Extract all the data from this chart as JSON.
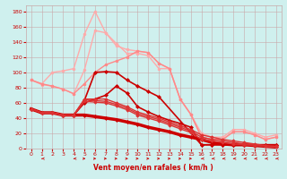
{
  "bg_color": "#cff0ee",
  "grid_color": "#c8a8a8",
  "xlabel": "Vent moyen/en rafales ( km/h )",
  "xlabel_color": "#cc0000",
  "tick_color": "#cc0000",
  "xlim": [
    -0.5,
    23.5
  ],
  "ylim": [
    0,
    188
  ],
  "yticks": [
    0,
    20,
    40,
    60,
    80,
    100,
    120,
    140,
    160,
    180
  ],
  "xticks": [
    0,
    1,
    2,
    3,
    4,
    5,
    6,
    7,
    8,
    9,
    10,
    11,
    12,
    13,
    14,
    15,
    16,
    17,
    18,
    19,
    20,
    21,
    22,
    23
  ],
  "series": [
    {
      "comment": "light pink - high peak 180 at x=6",
      "x": [
        0,
        1,
        2,
        3,
        4,
        5,
        6,
        7,
        8,
        9,
        10,
        11,
        12,
        13,
        14,
        15,
        16,
        17,
        18,
        19,
        20,
        21,
        22,
        23
      ],
      "y": [
        90,
        85,
        100,
        102,
        105,
        150,
        180,
        152,
        138,
        125,
        125,
        122,
        105,
        105,
        65,
        45,
        20,
        15,
        15,
        25,
        25,
        20,
        15,
        18
      ],
      "color": "#ffaaaa",
      "lw": 1.0,
      "marker": "o",
      "ms": 2.0
    },
    {
      "comment": "light pink - second high line peak 155",
      "x": [
        0,
        1,
        2,
        3,
        4,
        5,
        6,
        7,
        8,
        9,
        10,
        11,
        12,
        13,
        14,
        15,
        16,
        17,
        18,
        19,
        20,
        21,
        22,
        23
      ],
      "y": [
        90,
        84,
        82,
        78,
        72,
        103,
        155,
        152,
        135,
        130,
        128,
        126,
        112,
        105,
        65,
        45,
        15,
        12,
        12,
        22,
        22,
        18,
        12,
        15
      ],
      "color": "#ffaaaa",
      "lw": 1.0,
      "marker": "o",
      "ms": 2.0
    },
    {
      "comment": "medium pink - starts ~90, curves to peak ~130 at x=10-11",
      "x": [
        0,
        1,
        2,
        3,
        4,
        5,
        6,
        7,
        8,
        9,
        10,
        11,
        12,
        13,
        14,
        15,
        16,
        17,
        18,
        19,
        20,
        21,
        22,
        23
      ],
      "y": [
        90,
        85,
        82,
        78,
        72,
        85,
        100,
        110,
        115,
        120,
        128,
        126,
        112,
        105,
        65,
        45,
        15,
        12,
        12,
        22,
        22,
        18,
        12,
        15
      ],
      "color": "#ff8888",
      "lw": 1.0,
      "marker": "o",
      "ms": 2.0
    },
    {
      "comment": "dark red - starts 52, peaks ~100 at x=6-7-8, drops to 0",
      "x": [
        0,
        1,
        2,
        3,
        4,
        5,
        6,
        7,
        8,
        9,
        10,
        11,
        12,
        13,
        14,
        15,
        16,
        17,
        18,
        19,
        20,
        21,
        22,
        23
      ],
      "y": [
        52,
        47,
        47,
        44,
        44,
        63,
        100,
        101,
        100,
        90,
        82,
        75,
        68,
        null,
        null,
        null,
        5,
        5,
        5,
        5,
        5,
        5,
        5,
        5
      ],
      "color": "#cc0000",
      "lw": 1.2,
      "marker": "D",
      "ms": 2.0
    },
    {
      "comment": "dark red - starts 52, peaks ~82 at x=8-9, drops",
      "x": [
        0,
        1,
        2,
        3,
        4,
        5,
        6,
        7,
        8,
        9,
        10,
        11,
        12,
        13,
        14,
        15,
        16,
        17,
        18,
        19,
        20,
        21,
        22,
        23
      ],
      "y": [
        52,
        47,
        47,
        44,
        44,
        60,
        65,
        70,
        82,
        73,
        55,
        48,
        42,
        37,
        33,
        28,
        5,
        5,
        5,
        5,
        5,
        5,
        5,
        5
      ],
      "color": "#cc0000",
      "lw": 1.2,
      "marker": "D",
      "ms": 2.0
    },
    {
      "comment": "bold dark red - starts ~52, linear drop to ~0 at right",
      "x": [
        0,
        1,
        2,
        3,
        4,
        5,
        6,
        7,
        8,
        9,
        10,
        11,
        12,
        13,
        14,
        15,
        16,
        17,
        18,
        19,
        20,
        21,
        22,
        23
      ],
      "y": [
        52,
        47,
        47,
        44,
        44,
        44,
        42,
        40,
        38,
        35,
        32,
        28,
        25,
        22,
        18,
        15,
        12,
        8,
        6,
        5,
        5,
        4,
        3,
        2
      ],
      "color": "#cc0000",
      "lw": 2.5,
      "marker": "D",
      "ms": 2.0
    },
    {
      "comment": "medium red - starts 52, goes up to ~65 x=5, then linear drop",
      "x": [
        0,
        1,
        2,
        3,
        4,
        5,
        6,
        7,
        8,
        9,
        10,
        11,
        12,
        13,
        14,
        15,
        16,
        17,
        18,
        19,
        20,
        21,
        22,
        23
      ],
      "y": [
        52,
        47,
        47,
        44,
        44,
        65,
        65,
        65,
        60,
        55,
        48,
        44,
        40,
        35,
        30,
        25,
        18,
        15,
        12,
        10,
        8,
        6,
        4,
        3
      ],
      "color": "#dd3333",
      "lw": 1.0,
      "marker": "D",
      "ms": 1.8
    },
    {
      "comment": "medium red - starts 52, goes up to ~65 x=5, slight peak then drop",
      "x": [
        0,
        1,
        2,
        3,
        4,
        5,
        6,
        7,
        8,
        9,
        10,
        11,
        12,
        13,
        14,
        15,
        16,
        17,
        18,
        19,
        20,
        21,
        22,
        23
      ],
      "y": [
        52,
        47,
        47,
        44,
        44,
        64,
        63,
        62,
        58,
        53,
        46,
        42,
        38,
        33,
        28,
        23,
        15,
        12,
        10,
        8,
        6,
        5,
        3,
        2
      ],
      "color": "#dd3333",
      "lw": 1.0,
      "marker": "D",
      "ms": 1.8
    },
    {
      "comment": "medium red - similar but slightly lower",
      "x": [
        0,
        1,
        2,
        3,
        4,
        5,
        6,
        7,
        8,
        9,
        10,
        11,
        12,
        13,
        14,
        15,
        16,
        17,
        18,
        19,
        20,
        21,
        22,
        23
      ],
      "y": [
        52,
        47,
        47,
        44,
        44,
        62,
        61,
        60,
        56,
        51,
        44,
        40,
        36,
        31,
        26,
        21,
        12,
        10,
        8,
        6,
        5,
        4,
        3,
        2
      ],
      "color": "#dd3333",
      "lw": 1.0,
      "marker": "D",
      "ms": 1.8
    }
  ],
  "wind_dirs": [
    0,
    315,
    0,
    0,
    315,
    90,
    90,
    90,
    90,
    90,
    90,
    90,
    90,
    90,
    90,
    90,
    225,
    225,
    225,
    225,
    225,
    225,
    225,
    225
  ]
}
